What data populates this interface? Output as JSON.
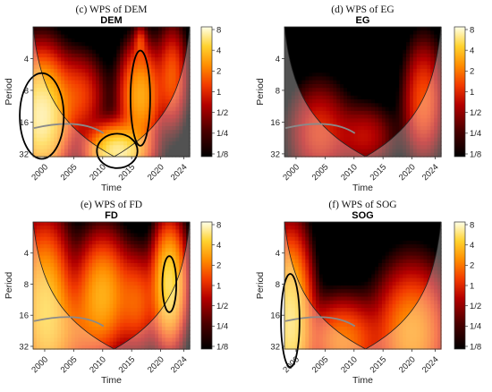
{
  "chart_data": [
    {
      "type": "heatmap",
      "caption": "(c) WPS of DEM",
      "title": "DEM",
      "xlabel": "Time",
      "ylabel": "Period",
      "x_ticks": [
        "2000",
        "2005",
        "2010",
        "2015",
        "2020",
        "2024"
      ],
      "y_ticks": [
        "4",
        "8",
        "16",
        "32"
      ],
      "xlim": [
        1998,
        2025
      ],
      "period_range": [
        2,
        34
      ],
      "log_scale_y": true,
      "colorbar_ticks": [
        "8",
        "4",
        "2",
        "1",
        "1/2",
        "1/4",
        "1/8"
      ],
      "hotspots": [
        {
          "t": 1999.5,
          "period": 14,
          "power": 6,
          "spread_t": 2.5,
          "spread_p": 0.35
        },
        {
          "t": 2016.5,
          "period": 9,
          "power": 3,
          "spread_t": 2.0,
          "spread_p": 0.3
        },
        {
          "t": 2012.5,
          "period": 30,
          "power": 6,
          "spread_t": 2.8,
          "spread_p": 0.15
        },
        {
          "t": 2006,
          "period": 9,
          "power": 1.2,
          "spread_t": 2.5,
          "spread_p": 0.25
        },
        {
          "t": 2022,
          "period": 6,
          "power": 1.5,
          "spread_t": 1.5,
          "spread_p": 0.3
        },
        {
          "t": 2016.5,
          "period": 2.8,
          "power": 0.9,
          "spread_t": 0.6,
          "spread_p": 0.1
        }
      ],
      "sig_contours": [
        {
          "t": 1999.5,
          "period": 14,
          "rx": 3.8,
          "ry": 0.45
        },
        {
          "t": 2016.5,
          "period": 9.5,
          "rx": 1.7,
          "ry": 0.5
        },
        {
          "t": 2012.5,
          "period": 30,
          "rx": 3.5,
          "ry": 0.18
        }
      ]
    },
    {
      "type": "heatmap",
      "caption": "(d) WPS of EG",
      "title": "EG",
      "xlabel": "Time",
      "ylabel": "Period",
      "x_ticks": [
        "2000",
        "2005",
        "2010",
        "2015",
        "2020",
        "2024"
      ],
      "y_ticks": [
        "4",
        "8",
        "16",
        "32"
      ],
      "xlim": [
        1998,
        2025
      ],
      "period_range": [
        2,
        34
      ],
      "log_scale_y": true,
      "colorbar_ticks": [
        "8",
        "4",
        "2",
        "1",
        "1/2",
        "1/4",
        "1/8"
      ],
      "hotspots": [
        {
          "t": 2022,
          "period": 10,
          "power": 1.4,
          "spread_t": 2.0,
          "spread_p": 0.35
        },
        {
          "t": 2004,
          "period": 20,
          "power": 1.0,
          "spread_t": 3.0,
          "spread_p": 0.3
        },
        {
          "t": 2012,
          "period": 22,
          "power": 0.7,
          "spread_t": 3.0,
          "spread_p": 0.2
        }
      ],
      "sig_contours": []
    },
    {
      "type": "heatmap",
      "caption": "(e) WPS of FD",
      "title": "FD",
      "xlabel": "Time",
      "ylabel": "Period",
      "x_ticks": [
        "2000",
        "2005",
        "2010",
        "2015",
        "2020",
        "2024"
      ],
      "y_ticks": [
        "4",
        "8",
        "16",
        "32"
      ],
      "xlim": [
        1998,
        2025
      ],
      "period_range": [
        2,
        34
      ],
      "log_scale_y": true,
      "colorbar_ticks": [
        "8",
        "4",
        "2",
        "1",
        "1/2",
        "1/4",
        "1/8"
      ],
      "hotspots": [
        {
          "t": 2000,
          "period": 14,
          "power": 4,
          "spread_t": 2.5,
          "spread_p": 0.5
        },
        {
          "t": 2010,
          "period": 10,
          "power": 3,
          "spread_t": 2.5,
          "spread_p": 0.35
        },
        {
          "t": 2021.5,
          "period": 8,
          "power": 5,
          "spread_t": 1.6,
          "spread_p": 0.35
        },
        {
          "t": 2016,
          "period": 12,
          "power": 1.5,
          "spread_t": 2.0,
          "spread_p": 0.3
        },
        {
          "t": 2005,
          "period": 24,
          "power": 1.2,
          "spread_t": 3.0,
          "spread_p": 0.3
        }
      ],
      "sig_contours": [
        {
          "t": 2021.5,
          "period": 8,
          "rx": 1.2,
          "ry": 0.3
        }
      ]
    },
    {
      "type": "heatmap",
      "caption": "(f) WPS of SOG",
      "title": "SOG",
      "xlabel": "Time",
      "ylabel": "Period",
      "x_ticks": [
        "2000",
        "2005",
        "2010",
        "2015",
        "2020",
        "2024"
      ],
      "y_ticks": [
        "4",
        "8",
        "16",
        "32"
      ],
      "xlim": [
        1998,
        2025
      ],
      "period_range": [
        2,
        34
      ],
      "log_scale_y": true,
      "colorbar_ticks": [
        "8",
        "4",
        "2",
        "1",
        "1/2",
        "1/4",
        "1/8"
      ],
      "hotspots": [
        {
          "t": 1999,
          "period": 18,
          "power": 5,
          "spread_t": 2.0,
          "spread_p": 0.5
        },
        {
          "t": 2020,
          "period": 24,
          "power": 2.5,
          "spread_t": 3.5,
          "spread_p": 0.4
        },
        {
          "t": 2008,
          "period": 28,
          "power": 2.0,
          "spread_t": 3.5,
          "spread_p": 0.25
        }
      ],
      "sig_contours": [
        {
          "t": 1999,
          "period": 18,
          "rx": 1.6,
          "ry": 0.5
        }
      ]
    }
  ]
}
